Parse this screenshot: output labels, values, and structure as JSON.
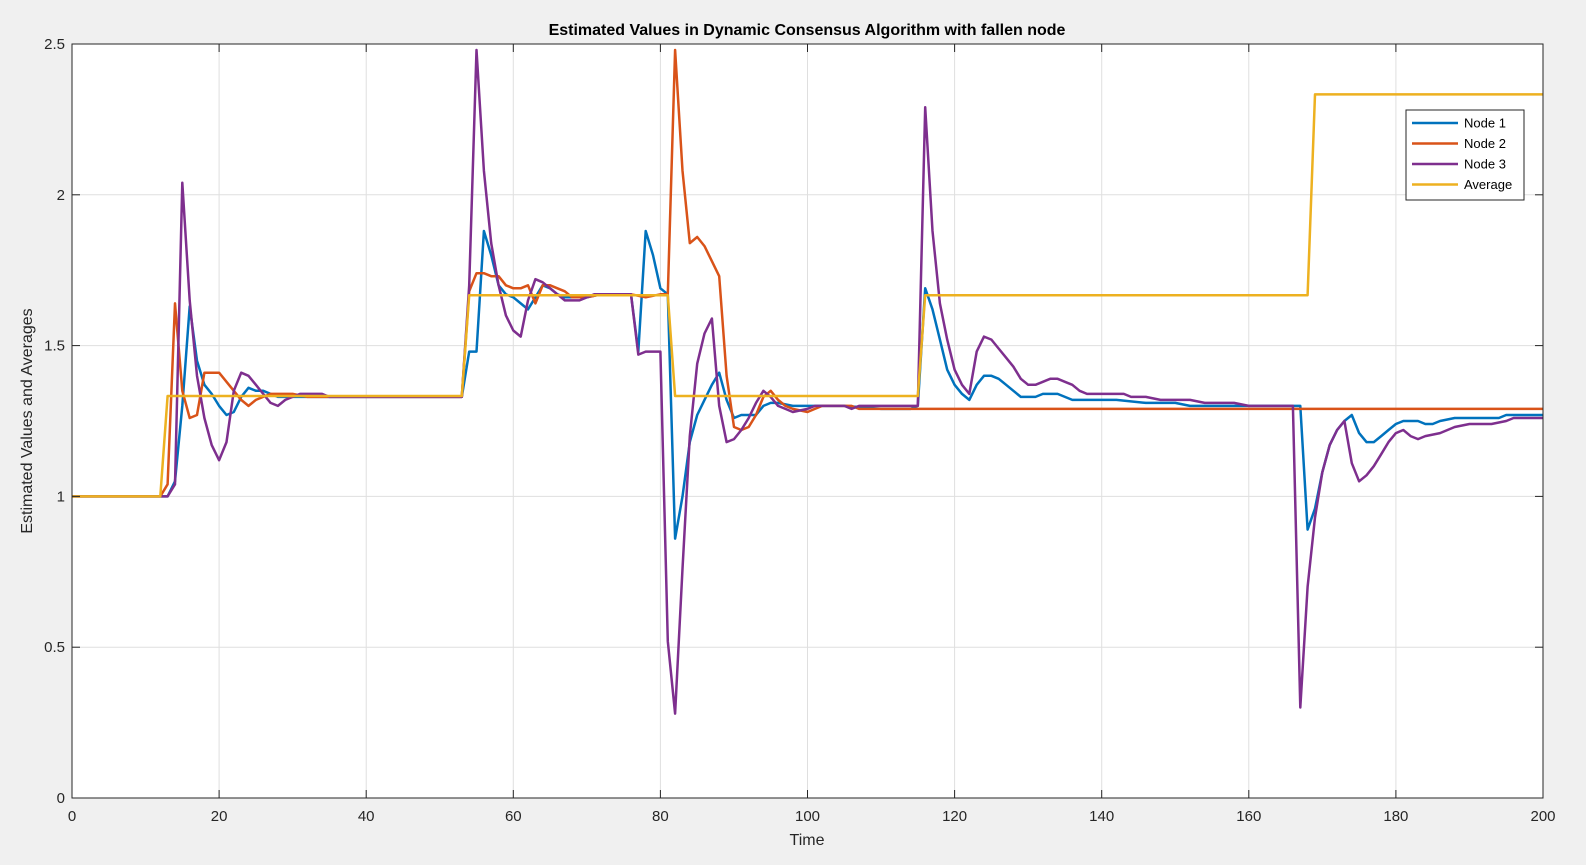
{
  "chart_data": {
    "type": "line",
    "title": "Estimated Values in Dynamic Consensus Algorithm with fallen node",
    "xlabel": "Time",
    "ylabel": "Estimated Values and Averages",
    "xlim": [
      0,
      200
    ],
    "ylim": [
      0,
      2.5
    ],
    "xticks": [
      0,
      20,
      40,
      60,
      80,
      100,
      120,
      140,
      160,
      180,
      200
    ],
    "yticks": [
      0,
      0.5,
      1,
      1.5,
      2,
      2.5
    ],
    "xtick_labels": [
      "0",
      "20",
      "40",
      "60",
      "80",
      "100",
      "120",
      "140",
      "160",
      "180",
      "200"
    ],
    "ytick_labels": [
      "0",
      "0.5",
      "1",
      "1.5",
      "2",
      "2.5"
    ],
    "grid": true,
    "legend": "top-right",
    "series": [
      {
        "name": "Node 1",
        "color": "#0072bd",
        "points": [
          [
            0,
            1
          ],
          [
            13,
            1
          ],
          [
            14,
            1.05
          ],
          [
            15,
            1.3
          ],
          [
            16,
            1.63
          ],
          [
            17,
            1.45
          ],
          [
            18,
            1.37
          ],
          [
            19,
            1.34
          ],
          [
            20,
            1.3
          ],
          [
            21,
            1.27
          ],
          [
            22,
            1.28
          ],
          [
            23,
            1.33
          ],
          [
            24,
            1.36
          ],
          [
            25,
            1.35
          ],
          [
            26,
            1.35
          ],
          [
            27,
            1.34
          ],
          [
            28,
            1.33
          ],
          [
            30,
            1.33
          ],
          [
            34,
            1.33
          ],
          [
            53,
            1.33
          ],
          [
            54,
            1.48
          ],
          [
            55,
            1.48
          ],
          [
            56,
            1.88
          ],
          [
            57,
            1.8
          ],
          [
            58,
            1.7
          ],
          [
            59,
            1.67
          ],
          [
            60,
            1.66
          ],
          [
            61,
            1.64
          ],
          [
            62,
            1.62
          ],
          [
            63,
            1.66
          ],
          [
            64,
            1.7
          ],
          [
            65,
            1.69
          ],
          [
            66,
            1.67
          ],
          [
            67,
            1.66
          ],
          [
            68,
            1.66
          ],
          [
            70,
            1.66
          ],
          [
            72,
            1.67
          ],
          [
            76,
            1.67
          ],
          [
            77,
            1.48
          ],
          [
            78,
            1.88
          ],
          [
            79,
            1.8
          ],
          [
            80,
            1.69
          ],
          [
            81,
            1.67
          ],
          [
            82,
            0.86
          ],
          [
            83,
            1.0
          ],
          [
            84,
            1.18
          ],
          [
            85,
            1.27
          ],
          [
            86,
            1.32
          ],
          [
            87,
            1.37
          ],
          [
            88,
            1.41
          ],
          [
            89,
            1.32
          ],
          [
            90,
            1.26
          ],
          [
            91,
            1.27
          ],
          [
            93,
            1.27
          ],
          [
            94,
            1.3
          ],
          [
            95,
            1.31
          ],
          [
            96,
            1.31
          ],
          [
            98,
            1.3
          ],
          [
            100,
            1.3
          ],
          [
            105,
            1.3
          ],
          [
            110,
            1.29
          ],
          [
            114,
            1.29
          ],
          [
            115,
            1.3
          ],
          [
            116,
            1.69
          ],
          [
            117,
            1.62
          ],
          [
            118,
            1.52
          ],
          [
            119,
            1.42
          ],
          [
            120,
            1.37
          ],
          [
            121,
            1.34
          ],
          [
            122,
            1.32
          ],
          [
            123,
            1.37
          ],
          [
            124,
            1.4
          ],
          [
            125,
            1.4
          ],
          [
            126,
            1.39
          ],
          [
            127,
            1.37
          ],
          [
            128,
            1.35
          ],
          [
            129,
            1.33
          ],
          [
            130,
            1.33
          ],
          [
            131,
            1.33
          ],
          [
            132,
            1.34
          ],
          [
            134,
            1.34
          ],
          [
            136,
            1.32
          ],
          [
            140,
            1.32
          ],
          [
            142,
            1.32
          ],
          [
            146,
            1.31
          ],
          [
            150,
            1.31
          ],
          [
            152,
            1.3
          ],
          [
            160,
            1.3
          ],
          [
            167,
            1.3
          ],
          [
            168,
            0.89
          ],
          [
            169,
            0.96
          ],
          [
            170,
            1.08
          ],
          [
            171,
            1.17
          ],
          [
            172,
            1.22
          ],
          [
            173,
            1.25
          ],
          [
            174,
            1.27
          ],
          [
            175,
            1.21
          ],
          [
            176,
            1.18
          ],
          [
            177,
            1.18
          ],
          [
            178,
            1.2
          ],
          [
            179,
            1.22
          ],
          [
            180,
            1.24
          ],
          [
            181,
            1.25
          ],
          [
            183,
            1.25
          ],
          [
            184,
            1.24
          ],
          [
            185,
            1.24
          ],
          [
            186,
            1.25
          ],
          [
            188,
            1.26
          ],
          [
            194,
            1.26
          ],
          [
            195,
            1.27
          ],
          [
            200,
            1.27
          ]
        ]
      },
      {
        "name": "Node 2",
        "color": "#d95319",
        "points": [
          [
            0,
            1
          ],
          [
            12,
            1
          ],
          [
            13,
            1.04
          ],
          [
            14,
            1.64
          ],
          [
            15,
            1.35
          ],
          [
            16,
            1.26
          ],
          [
            17,
            1.27
          ],
          [
            18,
            1.41
          ],
          [
            19,
            1.41
          ],
          [
            20,
            1.41
          ],
          [
            21,
            1.38
          ],
          [
            22,
            1.35
          ],
          [
            23,
            1.32
          ],
          [
            24,
            1.3
          ],
          [
            25,
            1.32
          ],
          [
            26,
            1.33
          ],
          [
            27,
            1.34
          ],
          [
            28,
            1.34
          ],
          [
            30,
            1.34
          ],
          [
            32,
            1.33
          ],
          [
            53,
            1.33
          ],
          [
            54,
            1.68
          ],
          [
            55,
            1.74
          ],
          [
            56,
            1.74
          ],
          [
            57,
            1.73
          ],
          [
            58,
            1.73
          ],
          [
            59,
            1.7
          ],
          [
            60,
            1.69
          ],
          [
            61,
            1.69
          ],
          [
            62,
            1.7
          ],
          [
            63,
            1.64
          ],
          [
            64,
            1.7
          ],
          [
            65,
            1.7
          ],
          [
            66,
            1.69
          ],
          [
            67,
            1.68
          ],
          [
            68,
            1.66
          ],
          [
            70,
            1.66
          ],
          [
            72,
            1.67
          ],
          [
            76,
            1.67
          ],
          [
            78,
            1.66
          ],
          [
            80,
            1.67
          ],
          [
            81,
            1.67
          ],
          [
            82,
            2.48
          ],
          [
            83,
            2.08
          ],
          [
            84,
            1.84
          ],
          [
            85,
            1.86
          ],
          [
            86,
            1.83
          ],
          [
            87,
            1.78
          ],
          [
            88,
            1.73
          ],
          [
            89,
            1.4
          ],
          [
            90,
            1.23
          ],
          [
            91,
            1.22
          ],
          [
            92,
            1.23
          ],
          [
            93,
            1.27
          ],
          [
            94,
            1.33
          ],
          [
            95,
            1.35
          ],
          [
            96,
            1.32
          ],
          [
            97,
            1.3
          ],
          [
            98,
            1.29
          ],
          [
            100,
            1.28
          ],
          [
            101,
            1.29
          ],
          [
            102,
            1.3
          ],
          [
            106,
            1.3
          ],
          [
            107,
            1.29
          ],
          [
            114,
            1.29
          ],
          [
            200,
            1.29
          ]
        ]
      },
      {
        "name": "Node 3",
        "color": "#7e2f8e",
        "points": [
          [
            0,
            1
          ],
          [
            12,
            1
          ],
          [
            13,
            1
          ],
          [
            14,
            1.04
          ],
          [
            15,
            2.04
          ],
          [
            16,
            1.65
          ],
          [
            17,
            1.4
          ],
          [
            18,
            1.26
          ],
          [
            19,
            1.17
          ],
          [
            20,
            1.12
          ],
          [
            21,
            1.18
          ],
          [
            22,
            1.35
          ],
          [
            23,
            1.41
          ],
          [
            24,
            1.4
          ],
          [
            25,
            1.37
          ],
          [
            26,
            1.34
          ],
          [
            27,
            1.31
          ],
          [
            28,
            1.3
          ],
          [
            29,
            1.32
          ],
          [
            30,
            1.33
          ],
          [
            31,
            1.34
          ],
          [
            34,
            1.34
          ],
          [
            35,
            1.33
          ],
          [
            53,
            1.33
          ],
          [
            54,
            1.7
          ],
          [
            55,
            2.48
          ],
          [
            56,
            2.08
          ],
          [
            57,
            1.84
          ],
          [
            58,
            1.7
          ],
          [
            59,
            1.6
          ],
          [
            60,
            1.55
          ],
          [
            61,
            1.53
          ],
          [
            62,
            1.65
          ],
          [
            63,
            1.72
          ],
          [
            64,
            1.71
          ],
          [
            65,
            1.69
          ],
          [
            66,
            1.67
          ],
          [
            67,
            1.65
          ],
          [
            68,
            1.65
          ],
          [
            69,
            1.65
          ],
          [
            70,
            1.66
          ],
          [
            71,
            1.67
          ],
          [
            76,
            1.67
          ],
          [
            77,
            1.47
          ],
          [
            78,
            1.48
          ],
          [
            80,
            1.48
          ],
          [
            81,
            0.52
          ],
          [
            82,
            0.28
          ],
          [
            83,
            0.76
          ],
          [
            84,
            1.2
          ],
          [
            85,
            1.44
          ],
          [
            86,
            1.54
          ],
          [
            87,
            1.59
          ],
          [
            88,
            1.3
          ],
          [
            89,
            1.18
          ],
          [
            90,
            1.19
          ],
          [
            91,
            1.22
          ],
          [
            92,
            1.26
          ],
          [
            93,
            1.31
          ],
          [
            94,
            1.35
          ],
          [
            95,
            1.33
          ],
          [
            96,
            1.3
          ],
          [
            97,
            1.29
          ],
          [
            98,
            1.28
          ],
          [
            100,
            1.29
          ],
          [
            101,
            1.3
          ],
          [
            105,
            1.3
          ],
          [
            106,
            1.29
          ],
          [
            107,
            1.3
          ],
          [
            114,
            1.3
          ],
          [
            115,
            1.3
          ],
          [
            116,
            2.29
          ],
          [
            117,
            1.88
          ],
          [
            118,
            1.64
          ],
          [
            119,
            1.52
          ],
          [
            120,
            1.42
          ],
          [
            121,
            1.37
          ],
          [
            122,
            1.34
          ],
          [
            123,
            1.48
          ],
          [
            124,
            1.53
          ],
          [
            125,
            1.52
          ],
          [
            126,
            1.49
          ],
          [
            127,
            1.46
          ],
          [
            128,
            1.43
          ],
          [
            129,
            1.39
          ],
          [
            130,
            1.37
          ],
          [
            131,
            1.37
          ],
          [
            132,
            1.38
          ],
          [
            133,
            1.39
          ],
          [
            134,
            1.39
          ],
          [
            135,
            1.38
          ],
          [
            136,
            1.37
          ],
          [
            137,
            1.35
          ],
          [
            138,
            1.34
          ],
          [
            143,
            1.34
          ],
          [
            144,
            1.33
          ],
          [
            146,
            1.33
          ],
          [
            148,
            1.32
          ],
          [
            152,
            1.32
          ],
          [
            154,
            1.31
          ],
          [
            158,
            1.31
          ],
          [
            160,
            1.3
          ],
          [
            166,
            1.3
          ],
          [
            167,
            0.3
          ],
          [
            168,
            0.7
          ],
          [
            169,
            0.93
          ],
          [
            170,
            1.08
          ],
          [
            171,
            1.17
          ],
          [
            172,
            1.22
          ],
          [
            173,
            1.25
          ],
          [
            174,
            1.11
          ],
          [
            175,
            1.05
          ],
          [
            176,
            1.07
          ],
          [
            177,
            1.1
          ],
          [
            178,
            1.14
          ],
          [
            179,
            1.18
          ],
          [
            180,
            1.21
          ],
          [
            181,
            1.22
          ],
          [
            182,
            1.2
          ],
          [
            183,
            1.19
          ],
          [
            184,
            1.2
          ],
          [
            186,
            1.21
          ],
          [
            188,
            1.23
          ],
          [
            190,
            1.24
          ],
          [
            193,
            1.24
          ],
          [
            195,
            1.25
          ],
          [
            196,
            1.26
          ],
          [
            200,
            1.26
          ]
        ]
      },
      {
        "name": "Average",
        "color": "#edb120",
        "points": [
          [
            0,
            1
          ],
          [
            12,
            1
          ],
          [
            13,
            1.333
          ],
          [
            53,
            1.333
          ],
          [
            54,
            1.667
          ],
          [
            81,
            1.667
          ],
          [
            82,
            1.333
          ],
          [
            115,
            1.333
          ],
          [
            116,
            1.667
          ],
          [
            168,
            1.667
          ],
          [
            169,
            2.333
          ],
          [
            200,
            2.333
          ]
        ]
      }
    ]
  }
}
